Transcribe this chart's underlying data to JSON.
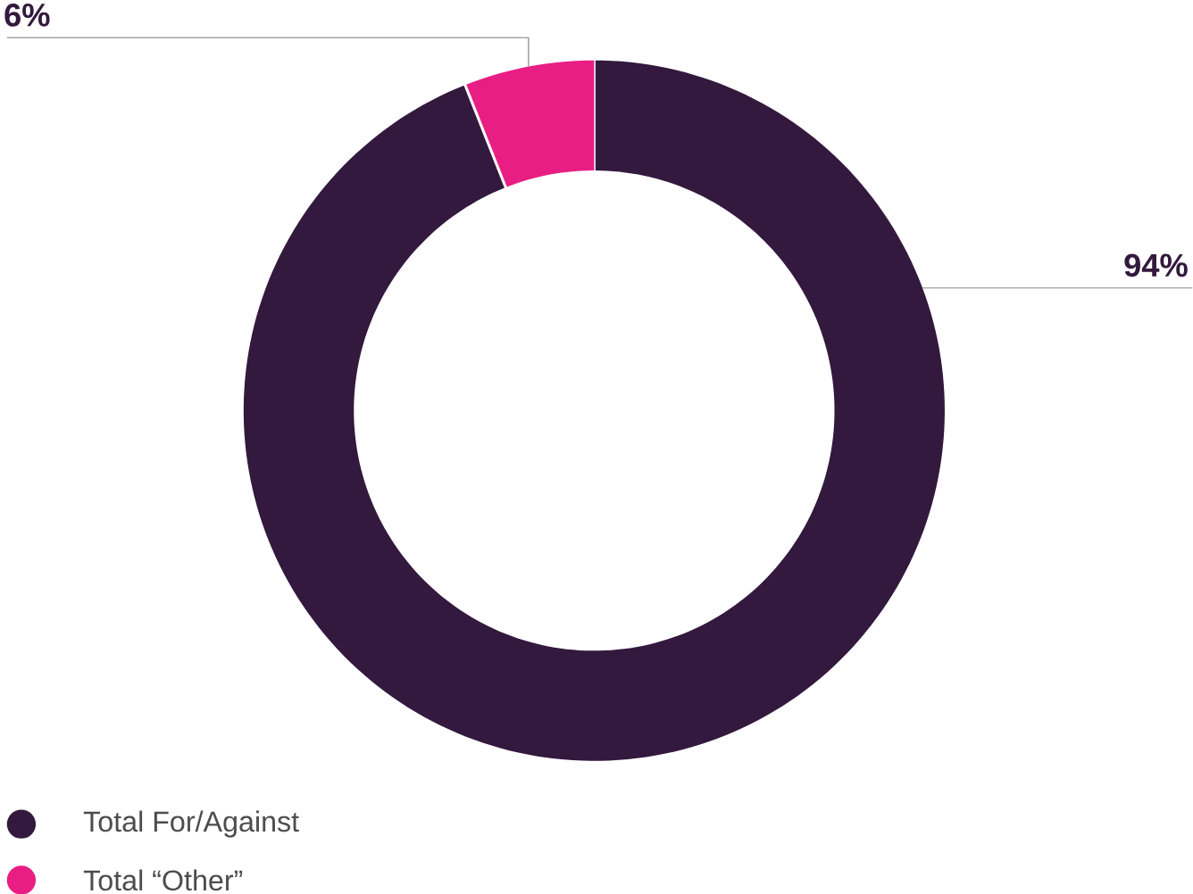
{
  "chart_data": {
    "type": "donut",
    "categories": [
      "Total For/Against",
      "Total “Other”"
    ],
    "values": [
      94,
      6
    ],
    "colors": [
      "#33193d",
      "#e91e85"
    ],
    "value_labels": [
      "94%",
      "6%"
    ],
    "legend": "bottom left"
  }
}
